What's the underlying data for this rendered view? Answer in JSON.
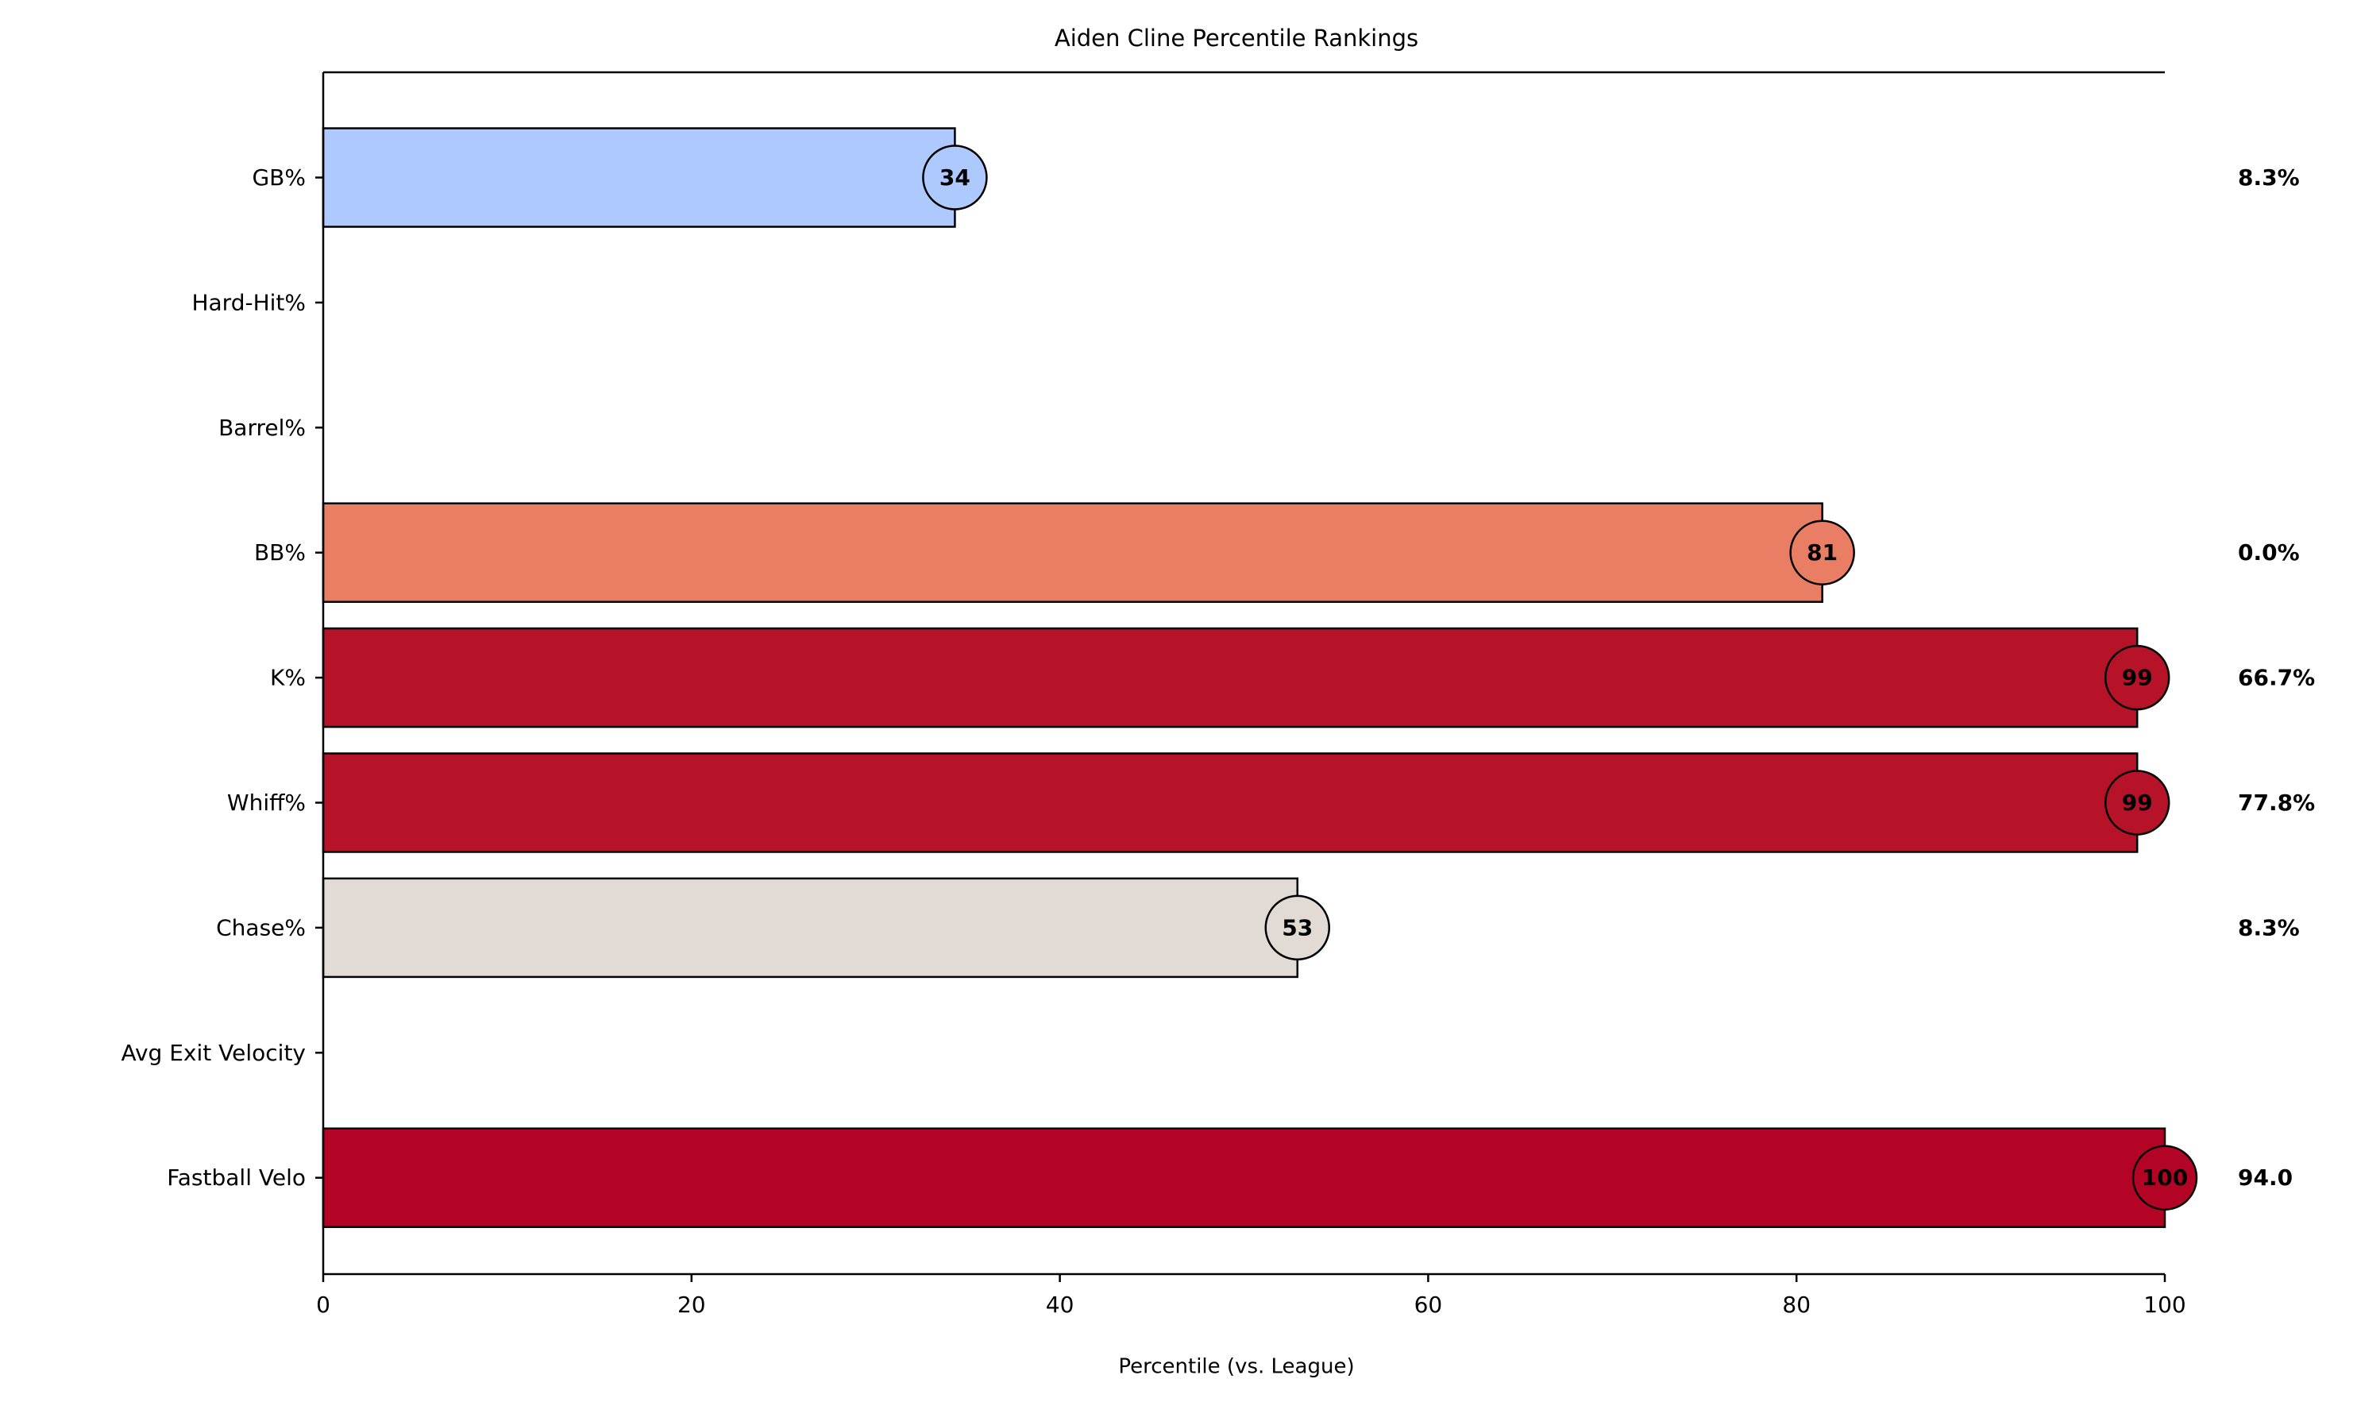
{
  "chart_data": {
    "type": "bar",
    "orientation": "horizontal",
    "title": "Aiden Cline Percentile Rankings",
    "xlabel": "Percentile (vs. League)",
    "ylabel": "",
    "xlim": [
      0,
      100
    ],
    "xticks": [
      "0",
      "20",
      "40",
      "60",
      "80",
      "100"
    ],
    "grid": false,
    "legend": "none",
    "categories": [
      "GB%",
      "Hard-Hit%",
      "Barrel%",
      "BB%",
      "K%",
      "Whiff%",
      "Chase%",
      "Avg Exit Velocity",
      "Fastball Velo"
    ],
    "values": [
      34.3,
      null,
      null,
      81.4,
      98.5,
      98.5,
      52.9,
      null,
      100
    ],
    "percentile_labels": [
      "34",
      "",
      "",
      "81",
      "99",
      "99",
      "53",
      "",
      "100"
    ],
    "stat_labels": [
      "8.3%",
      "",
      "",
      "0.0%",
      "66.7%",
      "77.8%",
      "8.3%",
      "",
      "94.0"
    ],
    "colors": [
      "#aec9fd",
      null,
      null,
      "#e97e65",
      "#b61228",
      "#b61228",
      "#e2dad4",
      null,
      "#b40426"
    ]
  }
}
